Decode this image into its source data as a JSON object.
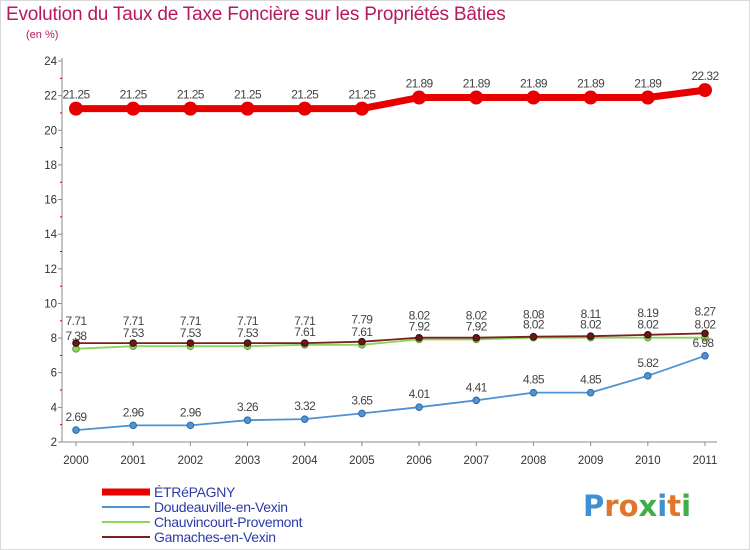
{
  "title": "Evolution du Taux de Taxe Foncière sur les Propriétés Bâties",
  "subtitle": "(en %)",
  "logo": {
    "letters": [
      "P",
      "r",
      "o",
      "x",
      "i",
      "t",
      "i"
    ],
    "colors": [
      "#3f8fd2",
      "#e0752c",
      "#e0752c",
      "#3fae49",
      "#3f8fd2",
      "#e0752c",
      "#3fae49"
    ]
  },
  "chart_data": {
    "type": "line",
    "x": [
      "2000",
      "2001",
      "2002",
      "2003",
      "2004",
      "2005",
      "2006",
      "2007",
      "2008",
      "2009",
      "2010",
      "2011"
    ],
    "ylim": [
      2,
      24
    ],
    "yticks": [
      "2",
      "4",
      "6",
      "8",
      "10",
      "12",
      "14",
      "16",
      "18",
      "20",
      "22",
      "24"
    ],
    "grid": false,
    "legend_position": "bottom-left",
    "series": [
      {
        "name": "ÉTRéPAGNY",
        "color": "#e80000",
        "values": [
          21.25,
          21.25,
          21.25,
          21.25,
          21.25,
          21.25,
          21.89,
          21.89,
          21.89,
          21.89,
          21.89,
          22.32
        ],
        "labels": [
          "21.25",
          "21.25",
          "21.25",
          "21.25",
          "21.25",
          "21.25",
          "21.89",
          "21.89",
          "21.89",
          "21.89",
          "21.89",
          "22.32"
        ]
      },
      {
        "name": "Doudeauville-en-Vexin",
        "color": "#4f93d2",
        "values": [
          2.69,
          2.96,
          2.96,
          3.26,
          3.32,
          3.65,
          4.01,
          4.41,
          4.85,
          4.85,
          5.82,
          6.98
        ],
        "labels": [
          "2.69",
          "2.96",
          "2.96",
          "3.26",
          "3.32",
          "3.65",
          "4.01",
          "4.41",
          "4.85",
          "4.85",
          "5.82",
          "6.98"
        ]
      },
      {
        "name": "Chauvincourt-Provemont",
        "color": "#8ed35a",
        "values": [
          7.38,
          7.53,
          7.53,
          7.53,
          7.61,
          7.61,
          7.92,
          7.92,
          8.02,
          8.02,
          8.02,
          8.02
        ],
        "labels": [
          "7.38",
          "7.53",
          "7.53",
          "7.53",
          "7.61",
          "7.61",
          "7.92",
          "7.92",
          "8.02",
          "8.02",
          "8.02",
          "8.02"
        ]
      },
      {
        "name": "Gamaches-en-Vexin",
        "color": "#7a2020",
        "values": [
          7.71,
          7.71,
          7.71,
          7.71,
          7.71,
          7.79,
          8.02,
          8.02,
          8.08,
          8.11,
          8.19,
          8.27
        ],
        "labels": [
          "7.71",
          "7.71",
          "7.71",
          "7.71",
          "7.71",
          "7.79",
          "8.02",
          "8.02",
          "8.08",
          "8.11",
          "8.19",
          "8.27"
        ]
      }
    ]
  }
}
